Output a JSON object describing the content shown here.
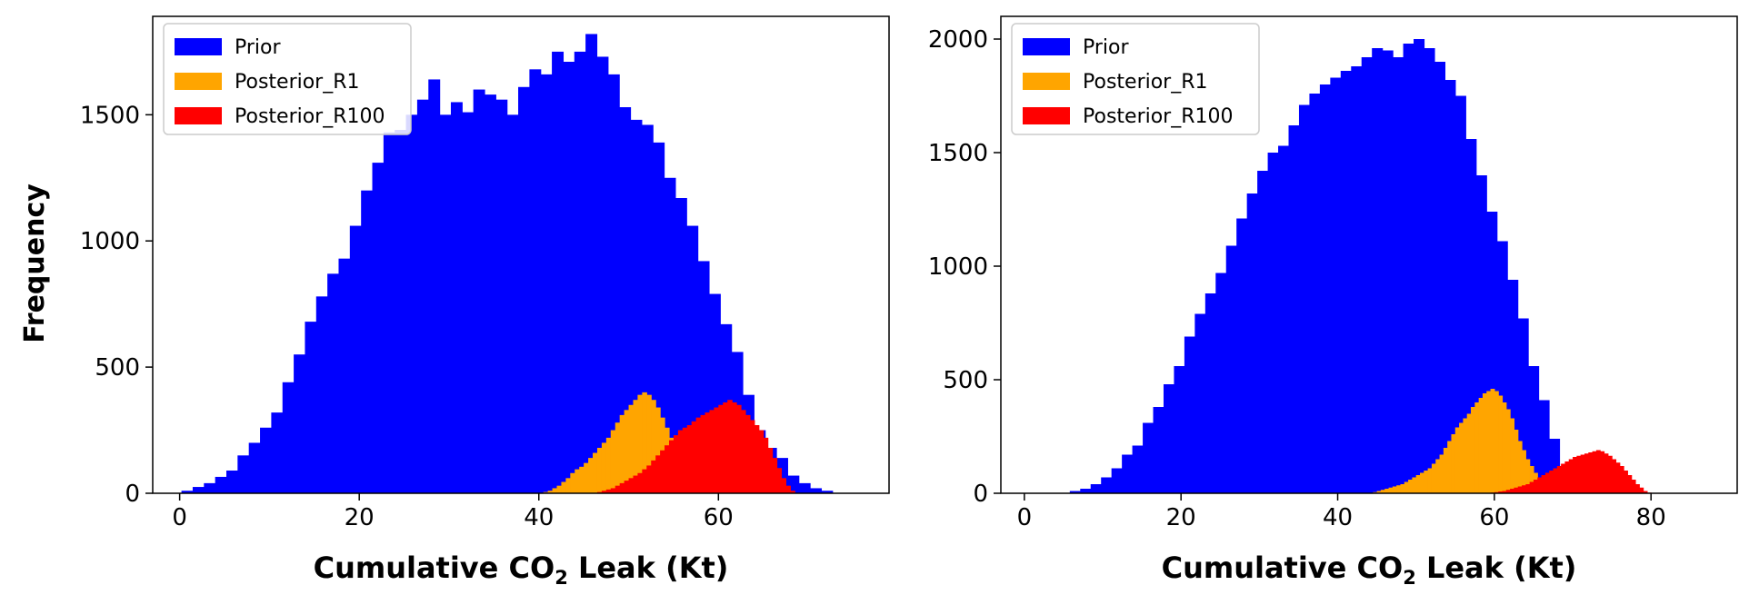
{
  "figure": {
    "ylabel": "Frequency",
    "legend_placement": "top-left"
  },
  "chart_data": [
    {
      "type": "histogram",
      "xlabel_main": "Cumulative CO",
      "xlabel_sub": "2",
      "xlabel_tail": " Leak (Kt)",
      "ylabel": "Frequency",
      "xlim": [
        -3,
        79
      ],
      "ylim": [
        0,
        1890
      ],
      "xticks": [
        0,
        20,
        40,
        60
      ],
      "yticks": [
        0,
        500,
        1000,
        1500
      ],
      "grid": false,
      "legend": "top-left",
      "series": [
        {
          "name": "Prior",
          "color": "#0000ff",
          "x_start": 0.2,
          "bin_width": 1.25,
          "values": [
            10,
            25,
            40,
            65,
            90,
            150,
            200,
            260,
            320,
            440,
            550,
            680,
            780,
            870,
            930,
            1060,
            1200,
            1310,
            1430,
            1440,
            1500,
            1560,
            1640,
            1500,
            1550,
            1510,
            1600,
            1580,
            1560,
            1500,
            1610,
            1680,
            1660,
            1750,
            1710,
            1750,
            1820,
            1730,
            1660,
            1530,
            1480,
            1460,
            1390,
            1250,
            1170,
            1060,
            920,
            790,
            670,
            560,
            390,
            250,
            180,
            140,
            70,
            40,
            20,
            10
          ]
        },
        {
          "name": "Posterior_R1",
          "color": "#ffa500",
          "x_start": 40.5,
          "bin_width": 0.5,
          "values": [
            5,
            10,
            20,
            30,
            45,
            60,
            80,
            95,
            105,
            120,
            140,
            160,
            180,
            200,
            220,
            250,
            280,
            310,
            330,
            350,
            370,
            390,
            400,
            390,
            370,
            340,
            300,
            260,
            220,
            190,
            160,
            130,
            100,
            80,
            60,
            45,
            30,
            20,
            10,
            5
          ]
        },
        {
          "name": "Posterior_R100",
          "color": "#ff0000",
          "x_start": 46.5,
          "bin_width": 0.5,
          "values": [
            5,
            10,
            15,
            20,
            30,
            40,
            50,
            60,
            70,
            80,
            95,
            110,
            130,
            150,
            170,
            190,
            210,
            230,
            250,
            260,
            270,
            285,
            300,
            310,
            320,
            330,
            340,
            350,
            360,
            370,
            360,
            350,
            330,
            310,
            290,
            270,
            250,
            220,
            180,
            140,
            100,
            60,
            30,
            10
          ]
        }
      ]
    },
    {
      "type": "histogram",
      "xlabel_main": "Cumulative CO",
      "xlabel_sub": "2",
      "xlabel_tail": " Leak (Kt)",
      "ylabel": "",
      "xlim": [
        -3,
        91
      ],
      "ylim": [
        0,
        2100
      ],
      "xticks": [
        0,
        20,
        40,
        60,
        80
      ],
      "yticks": [
        0,
        500,
        1000,
        1500,
        2000
      ],
      "grid": false,
      "legend": "top-left",
      "series": [
        {
          "name": "Prior",
          "color": "#0000ff",
          "x_start": 5.8,
          "bin_width": 1.33,
          "values": [
            10,
            20,
            40,
            70,
            110,
            170,
            210,
            310,
            380,
            480,
            560,
            690,
            790,
            880,
            970,
            1090,
            1210,
            1320,
            1420,
            1500,
            1530,
            1620,
            1710,
            1760,
            1800,
            1830,
            1860,
            1880,
            1920,
            1960,
            1950,
            1920,
            1980,
            2000,
            1960,
            1900,
            1820,
            1750,
            1560,
            1400,
            1240,
            1110,
            940,
            770,
            560,
            410,
            240,
            120,
            80,
            40,
            20
          ]
        },
        {
          "name": "Posterior_R1",
          "color": "#ffa500",
          "x_start": 44.5,
          "bin_width": 0.5,
          "values": [
            5,
            10,
            15,
            20,
            25,
            30,
            35,
            40,
            50,
            60,
            70,
            80,
            90,
            100,
            110,
            130,
            150,
            170,
            200,
            230,
            260,
            290,
            310,
            330,
            350,
            380,
            400,
            420,
            440,
            450,
            460,
            450,
            430,
            400,
            370,
            330,
            280,
            230,
            190,
            150,
            120,
            90,
            60,
            40,
            25,
            10,
            5
          ]
        },
        {
          "name": "Posterior_R100",
          "color": "#ff0000",
          "x_start": 59.5,
          "bin_width": 0.5,
          "values": [
            3,
            5,
            8,
            10,
            15,
            20,
            25,
            30,
            35,
            40,
            50,
            60,
            70,
            80,
            90,
            100,
            110,
            120,
            130,
            140,
            150,
            160,
            165,
            170,
            175,
            180,
            185,
            190,
            185,
            175,
            165,
            150,
            135,
            120,
            100,
            80,
            60,
            40,
            25,
            10,
            3
          ]
        }
      ]
    }
  ]
}
